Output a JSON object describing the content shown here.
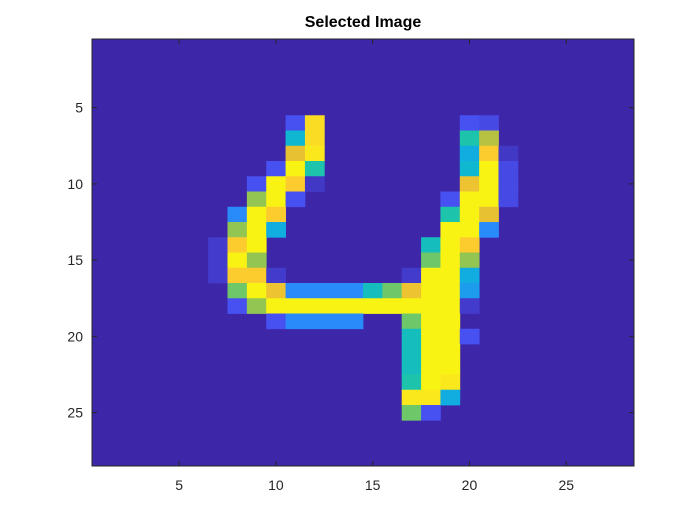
{
  "chart_data": {
    "type": "heatmap",
    "title": "Selected Image",
    "xlabel": "",
    "ylabel": "",
    "xlim": [
      0.5,
      28.5
    ],
    "ylim": [
      0.5,
      28.5
    ],
    "y_reversed": true,
    "grid": false,
    "colormap": "parula",
    "clim": [
      0,
      1
    ],
    "xticks": [
      5,
      10,
      15,
      20,
      25
    ],
    "yticks": [
      5,
      10,
      15,
      20,
      25
    ],
    "background_value": 0,
    "cells": [
      {
        "x": 11,
        "y": 6,
        "v": 0.12
      },
      {
        "x": 12,
        "y": 6,
        "v": 0.92
      },
      {
        "x": 20,
        "y": 6,
        "v": 0.12
      },
      {
        "x": 21,
        "y": 6,
        "v": 0.1
      },
      {
        "x": 11,
        "y": 7,
        "v": 0.4
      },
      {
        "x": 12,
        "y": 7,
        "v": 0.92
      },
      {
        "x": 20,
        "y": 7,
        "v": 0.5
      },
      {
        "x": 21,
        "y": 7,
        "v": 0.7
      },
      {
        "x": 11,
        "y": 8,
        "v": 0.8
      },
      {
        "x": 12,
        "y": 8,
        "v": 0.95
      },
      {
        "x": 20,
        "y": 8,
        "v": 0.35
      },
      {
        "x": 21,
        "y": 8,
        "v": 0.88
      },
      {
        "x": 22,
        "y": 8,
        "v": 0.05
      },
      {
        "x": 10,
        "y": 9,
        "v": 0.12
      },
      {
        "x": 11,
        "y": 9,
        "v": 0.98
      },
      {
        "x": 12,
        "y": 9,
        "v": 0.5
      },
      {
        "x": 20,
        "y": 9,
        "v": 0.4
      },
      {
        "x": 21,
        "y": 9,
        "v": 0.98
      },
      {
        "x": 22,
        "y": 9,
        "v": 0.1
      },
      {
        "x": 9,
        "y": 10,
        "v": 0.12
      },
      {
        "x": 10,
        "y": 10,
        "v": 0.98
      },
      {
        "x": 11,
        "y": 10,
        "v": 0.88
      },
      {
        "x": 12,
        "y": 10,
        "v": 0.05
      },
      {
        "x": 20,
        "y": 10,
        "v": 0.82
      },
      {
        "x": 21,
        "y": 10,
        "v": 0.98
      },
      {
        "x": 22,
        "y": 10,
        "v": 0.1
      },
      {
        "x": 9,
        "y": 11,
        "v": 0.65
      },
      {
        "x": 10,
        "y": 11,
        "v": 0.98
      },
      {
        "x": 11,
        "y": 11,
        "v": 0.12
      },
      {
        "x": 19,
        "y": 11,
        "v": 0.12
      },
      {
        "x": 20,
        "y": 11,
        "v": 0.98
      },
      {
        "x": 21,
        "y": 11,
        "v": 0.98
      },
      {
        "x": 22,
        "y": 11,
        "v": 0.1
      },
      {
        "x": 8,
        "y": 12,
        "v": 0.25
      },
      {
        "x": 9,
        "y": 12,
        "v": 0.98
      },
      {
        "x": 10,
        "y": 12,
        "v": 0.88
      },
      {
        "x": 19,
        "y": 12,
        "v": 0.5
      },
      {
        "x": 20,
        "y": 12,
        "v": 0.98
      },
      {
        "x": 21,
        "y": 12,
        "v": 0.8
      },
      {
        "x": 8,
        "y": 13,
        "v": 0.65
      },
      {
        "x": 9,
        "y": 13,
        "v": 0.98
      },
      {
        "x": 10,
        "y": 13,
        "v": 0.35
      },
      {
        "x": 19,
        "y": 13,
        "v": 0.98
      },
      {
        "x": 20,
        "y": 13,
        "v": 0.98
      },
      {
        "x": 21,
        "y": 13,
        "v": 0.25
      },
      {
        "x": 7,
        "y": 14,
        "v": 0.06
      },
      {
        "x": 8,
        "y": 14,
        "v": 0.88
      },
      {
        "x": 9,
        "y": 14,
        "v": 0.98
      },
      {
        "x": 18,
        "y": 14,
        "v": 0.45
      },
      {
        "x": 19,
        "y": 14,
        "v": 0.98
      },
      {
        "x": 20,
        "y": 14,
        "v": 0.88
      },
      {
        "x": 7,
        "y": 15,
        "v": 0.06
      },
      {
        "x": 8,
        "y": 15,
        "v": 0.98
      },
      {
        "x": 9,
        "y": 15,
        "v": 0.65
      },
      {
        "x": 18,
        "y": 15,
        "v": 0.6
      },
      {
        "x": 19,
        "y": 15,
        "v": 0.98
      },
      {
        "x": 20,
        "y": 15,
        "v": 0.65
      },
      {
        "x": 7,
        "y": 16,
        "v": 0.06
      },
      {
        "x": 8,
        "y": 16,
        "v": 0.88
      },
      {
        "x": 9,
        "y": 16,
        "v": 0.88
      },
      {
        "x": 10,
        "y": 16,
        "v": 0.06
      },
      {
        "x": 17,
        "y": 16,
        "v": 0.06
      },
      {
        "x": 18,
        "y": 16,
        "v": 0.98
      },
      {
        "x": 19,
        "y": 16,
        "v": 0.98
      },
      {
        "x": 20,
        "y": 16,
        "v": 0.35
      },
      {
        "x": 8,
        "y": 17,
        "v": 0.6
      },
      {
        "x": 9,
        "y": 17,
        "v": 0.98
      },
      {
        "x": 10,
        "y": 17,
        "v": 0.82
      },
      {
        "x": 11,
        "y": 17,
        "v": 0.25
      },
      {
        "x": 12,
        "y": 17,
        "v": 0.25
      },
      {
        "x": 13,
        "y": 17,
        "v": 0.25
      },
      {
        "x": 14,
        "y": 17,
        "v": 0.25
      },
      {
        "x": 15,
        "y": 17,
        "v": 0.45
      },
      {
        "x": 16,
        "y": 17,
        "v": 0.6
      },
      {
        "x": 17,
        "y": 17,
        "v": 0.82
      },
      {
        "x": 18,
        "y": 17,
        "v": 0.98
      },
      {
        "x": 19,
        "y": 17,
        "v": 0.98
      },
      {
        "x": 20,
        "y": 17,
        "v": 0.3
      },
      {
        "x": 8,
        "y": 18,
        "v": 0.12
      },
      {
        "x": 9,
        "y": 18,
        "v": 0.65
      },
      {
        "x": 10,
        "y": 18,
        "v": 0.98
      },
      {
        "x": 11,
        "y": 18,
        "v": 0.98
      },
      {
        "x": 12,
        "y": 18,
        "v": 0.98
      },
      {
        "x": 13,
        "y": 18,
        "v": 0.98
      },
      {
        "x": 14,
        "y": 18,
        "v": 0.98
      },
      {
        "x": 15,
        "y": 18,
        "v": 0.98
      },
      {
        "x": 16,
        "y": 18,
        "v": 0.98
      },
      {
        "x": 17,
        "y": 18,
        "v": 0.98
      },
      {
        "x": 18,
        "y": 18,
        "v": 0.98
      },
      {
        "x": 19,
        "y": 18,
        "v": 0.98
      },
      {
        "x": 20,
        "y": 18,
        "v": 0.06
      },
      {
        "x": 10,
        "y": 19,
        "v": 0.12
      },
      {
        "x": 11,
        "y": 19,
        "v": 0.25
      },
      {
        "x": 12,
        "y": 19,
        "v": 0.25
      },
      {
        "x": 13,
        "y": 19,
        "v": 0.25
      },
      {
        "x": 14,
        "y": 19,
        "v": 0.25
      },
      {
        "x": 17,
        "y": 19,
        "v": 0.6
      },
      {
        "x": 18,
        "y": 19,
        "v": 0.98
      },
      {
        "x": 19,
        "y": 19,
        "v": 0.98
      },
      {
        "x": 17,
        "y": 20,
        "v": 0.45
      },
      {
        "x": 18,
        "y": 20,
        "v": 0.98
      },
      {
        "x": 19,
        "y": 20,
        "v": 0.98
      },
      {
        "x": 20,
        "y": 20,
        "v": 0.12
      },
      {
        "x": 17,
        "y": 21,
        "v": 0.45
      },
      {
        "x": 18,
        "y": 21,
        "v": 0.98
      },
      {
        "x": 19,
        "y": 21,
        "v": 0.98
      },
      {
        "x": 17,
        "y": 22,
        "v": 0.45
      },
      {
        "x": 18,
        "y": 22,
        "v": 0.98
      },
      {
        "x": 19,
        "y": 22,
        "v": 0.98
      },
      {
        "x": 17,
        "y": 23,
        "v": 0.5
      },
      {
        "x": 18,
        "y": 23,
        "v": 0.98
      },
      {
        "x": 19,
        "y": 23,
        "v": 0.95
      },
      {
        "x": 17,
        "y": 24,
        "v": 0.95
      },
      {
        "x": 18,
        "y": 24,
        "v": 0.95
      },
      {
        "x": 19,
        "y": 24,
        "v": 0.35
      },
      {
        "x": 17,
        "y": 25,
        "v": 0.6
      },
      {
        "x": 18,
        "y": 25,
        "v": 0.12
      }
    ]
  }
}
